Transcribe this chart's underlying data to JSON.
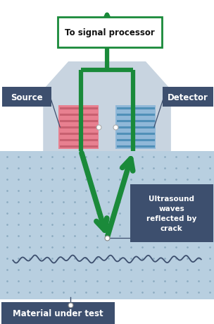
{
  "bg_color": "#ffffff",
  "material_color": "#b8cfe0",
  "material_dot_color": "#8aaabf",
  "device_body_color": "#c8d4e0",
  "source_color": "#e88090",
  "source_stripe_color": "#c86070",
  "detector_color": "#90b8d8",
  "detector_stripe_color": "#5090b8",
  "arrow_color": "#1a8a3a",
  "label_bg_color": "#3d4f6e",
  "label_text_color": "#ffffff",
  "signal_box_color": "#ffffff",
  "signal_box_edge": "#1a8a3a",
  "title": "To signal processor",
  "source_label": "Source",
  "detector_label": "Detector",
  "crack_label": "Ultrasound\nwaves\nreflected by\ncrack",
  "material_label": "Material under test"
}
